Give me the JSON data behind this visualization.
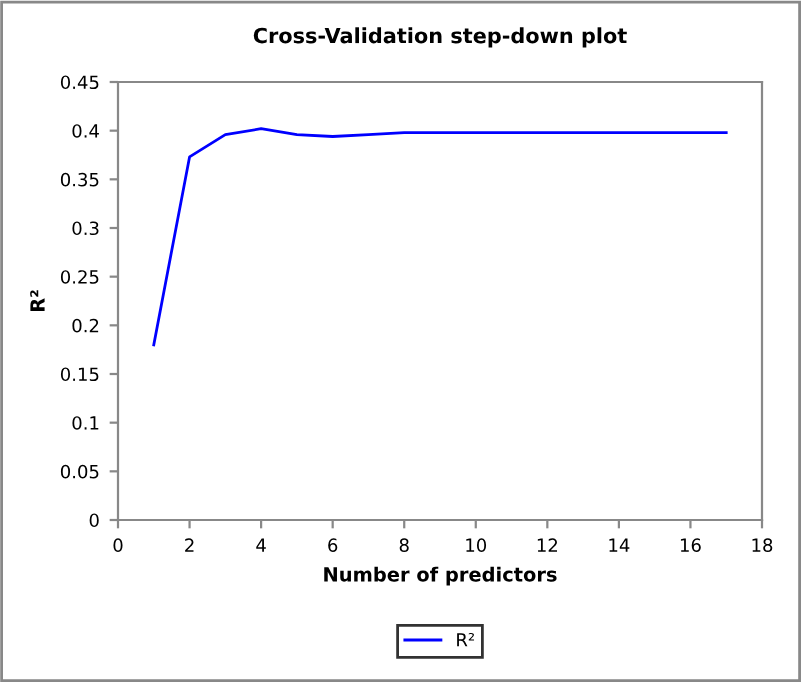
{
  "chart_data": {
    "type": "line",
    "title": "Cross-Validation step-down plot",
    "xlabel": "Number of predictors",
    "ylabel": "R²",
    "x": [
      1,
      2,
      3,
      4,
      5,
      6,
      7,
      8,
      9,
      10,
      11,
      12,
      13,
      14,
      15,
      16,
      17
    ],
    "series": [
      {
        "name": "R²",
        "color": "#0000ff",
        "values": [
          0.18,
          0.373,
          0.396,
          0.402,
          0.396,
          0.394,
          0.396,
          0.398,
          0.398,
          0.398,
          0.398,
          0.398,
          0.398,
          0.398,
          0.398,
          0.398,
          0.398
        ]
      }
    ],
    "xlim": [
      0,
      18
    ],
    "xticks": [
      0,
      2,
      4,
      6,
      8,
      10,
      12,
      14,
      16,
      18
    ],
    "ylim": [
      0,
      0.45
    ],
    "yticks": [
      0,
      0.05,
      0.1,
      0.15,
      0.2,
      0.25,
      0.3,
      0.35,
      0.4,
      0.45
    ],
    "grid": false,
    "legend": "bottom",
    "marker": "none",
    "line_style": "solid"
  }
}
